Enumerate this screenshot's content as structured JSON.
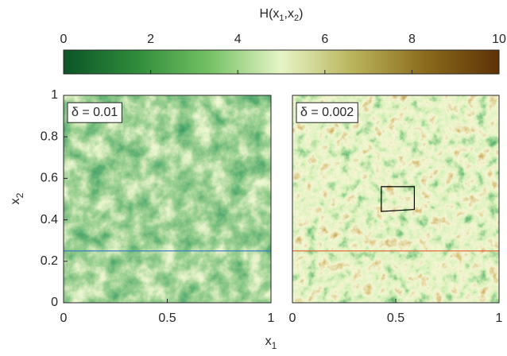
{
  "chart_data": {
    "type": "heatmap",
    "colorbar": {
      "label": [
        "H(x",
        "1",
        ",x",
        "2",
        ")"
      ],
      "clim": [
        0,
        10
      ],
      "ticks": [
        0,
        2,
        4,
        6,
        8,
        10
      ],
      "colormap": [
        "#0b5427",
        "#2f8c3a",
        "#73c063",
        "#e6f5c6",
        "#b9b35a",
        "#8a6a1c",
        "#5e3206"
      ]
    },
    "xlabel": [
      "x",
      "1"
    ],
    "ylabel": [
      "x",
      "2"
    ],
    "panels": [
      {
        "label": "δ = 0.01",
        "xlim": [
          0,
          1
        ],
        "ylim": [
          0,
          1
        ],
        "xticks": [
          0,
          0.5,
          1
        ],
        "yticks": [
          0,
          0.2,
          0.4,
          0.6,
          0.8,
          1
        ],
        "hline": 0.25,
        "hline_color": "#3b7fc4"
      },
      {
        "label": "δ = 0.002",
        "xlim": [
          0,
          1
        ],
        "ylim": [
          0,
          1
        ],
        "xticks": [
          0,
          0.5,
          1
        ],
        "hline": 0.25,
        "hline_color": "#e07040",
        "box": {
          "x": [
            0.43,
            0.59,
            0.59,
            0.43
          ],
          "y": [
            0.56,
            0.56,
            0.45,
            0.44
          ]
        }
      }
    ]
  }
}
